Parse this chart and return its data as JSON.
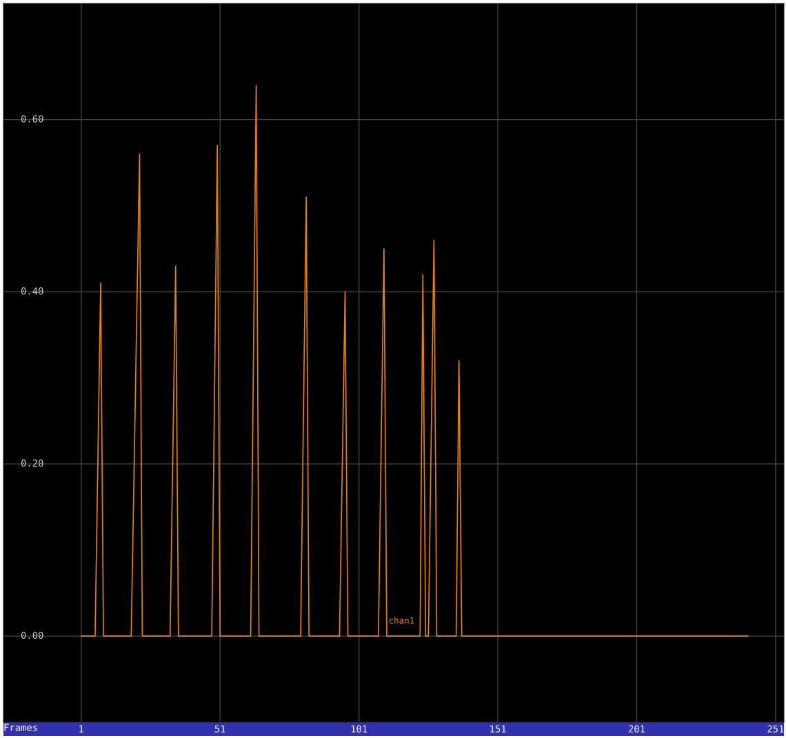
{
  "chart_data": {
    "type": "line",
    "xlabel": "Frames",
    "xlim": [
      -27,
      254
    ],
    "ylim": [
      -0.1,
      0.735
    ],
    "xticks": [
      1,
      51,
      101,
      151,
      201,
      251
    ],
    "yticks": [
      {
        "value": 0,
        "label": "0.00"
      },
      {
        "value": 0.2,
        "label": "0.20"
      },
      {
        "value": 0.4,
        "label": "0.40"
      },
      {
        "value": 0.6,
        "label": "0.60"
      }
    ],
    "grid": true,
    "legend": false,
    "series": [
      {
        "name": "chan1",
        "color": "#e8820c",
        "x": [
          1,
          6,
          8,
          9,
          19,
          22,
          23,
          33,
          35,
          36,
          48,
          50,
          51,
          62,
          64,
          65,
          80,
          82,
          83,
          94,
          96,
          97,
          108,
          110,
          111,
          123,
          124,
          125,
          126,
          128,
          129,
          136,
          137,
          138,
          241
        ],
        "values": [
          0,
          0,
          0.41,
          0,
          0,
          0.56,
          0,
          0,
          0.43,
          0,
          0,
          0.57,
          0,
          0,
          0.64,
          0,
          0,
          0.51,
          0,
          0,
          0.4,
          0,
          0,
          0.45,
          0,
          0,
          0.42,
          0,
          0,
          0.46,
          0,
          0,
          0.32,
          0,
          0
        ]
      }
    ]
  }
}
